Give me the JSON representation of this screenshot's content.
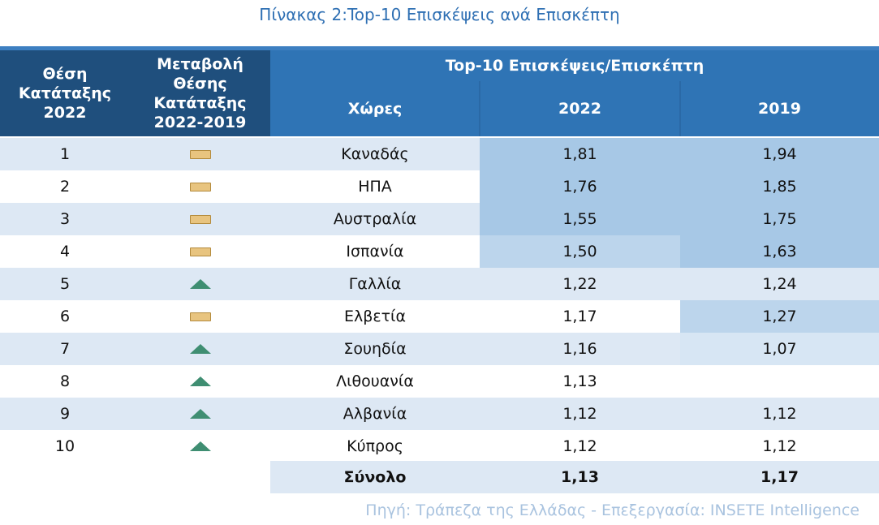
{
  "title": "Πίνακας 2:Top-10 Επισκέψεις ανά Επισκέπτη",
  "header": {
    "rank_label": "Θέση Κατάταξης 2022",
    "change_label": "Μεταβολή Θέσης Κατάταξης 2022-2019",
    "group_label": "Top-10 Επισκέψεις/Επισκέπτη",
    "country_label": "Χώρες",
    "year1_label": "2022",
    "year2_label": "2019"
  },
  "rows": [
    {
      "rank": "1",
      "change": "flat",
      "country": "Καναδάς",
      "v2022": "1,81",
      "v2019": "1,94"
    },
    {
      "rank": "2",
      "change": "flat",
      "country": "ΗΠΑ",
      "v2022": "1,76",
      "v2019": "1,85"
    },
    {
      "rank": "3",
      "change": "flat",
      "country": "Αυστραλία",
      "v2022": "1,55",
      "v2019": "1,75"
    },
    {
      "rank": "4",
      "change": "flat",
      "country": "Ισπανία",
      "v2022": "1,50",
      "v2019": "1,63"
    },
    {
      "rank": "5",
      "change": "up",
      "country": "Γαλλία",
      "v2022": "1,22",
      "v2019": "1,24"
    },
    {
      "rank": "6",
      "change": "flat",
      "country": "Ελβετία",
      "v2022": "1,17",
      "v2019": "1,27"
    },
    {
      "rank": "7",
      "change": "up",
      "country": "Σουηδία",
      "v2022": "1,16",
      "v2019": "1,07"
    },
    {
      "rank": "8",
      "change": "up",
      "country": "Λιθουανία",
      "v2022": "1,13",
      "v2019": ""
    },
    {
      "rank": "9",
      "change": "up",
      "country": "Αλβανία",
      "v2022": "1,12",
      "v2019": "1,12"
    },
    {
      "rank": "10",
      "change": "up",
      "country": "Κύπρος",
      "v2022": "1,12",
      "v2019": "1,12"
    }
  ],
  "total": {
    "label": "Σύνολο",
    "v2022": "1,13",
    "v2019": "1,17"
  },
  "source": "Πηγή: Τράπεζα της Ελλάδας - Επεξεργασία: INSETE Intelligence",
  "colors": {
    "header_dark": "#1f4f7d",
    "header_blue": "#2f74b5",
    "row_band": "#dde8f4",
    "heat_strong": "#a7c8e6",
    "heat_mid": "#bcd5ec",
    "heat_light": "#d7e6f4"
  }
}
